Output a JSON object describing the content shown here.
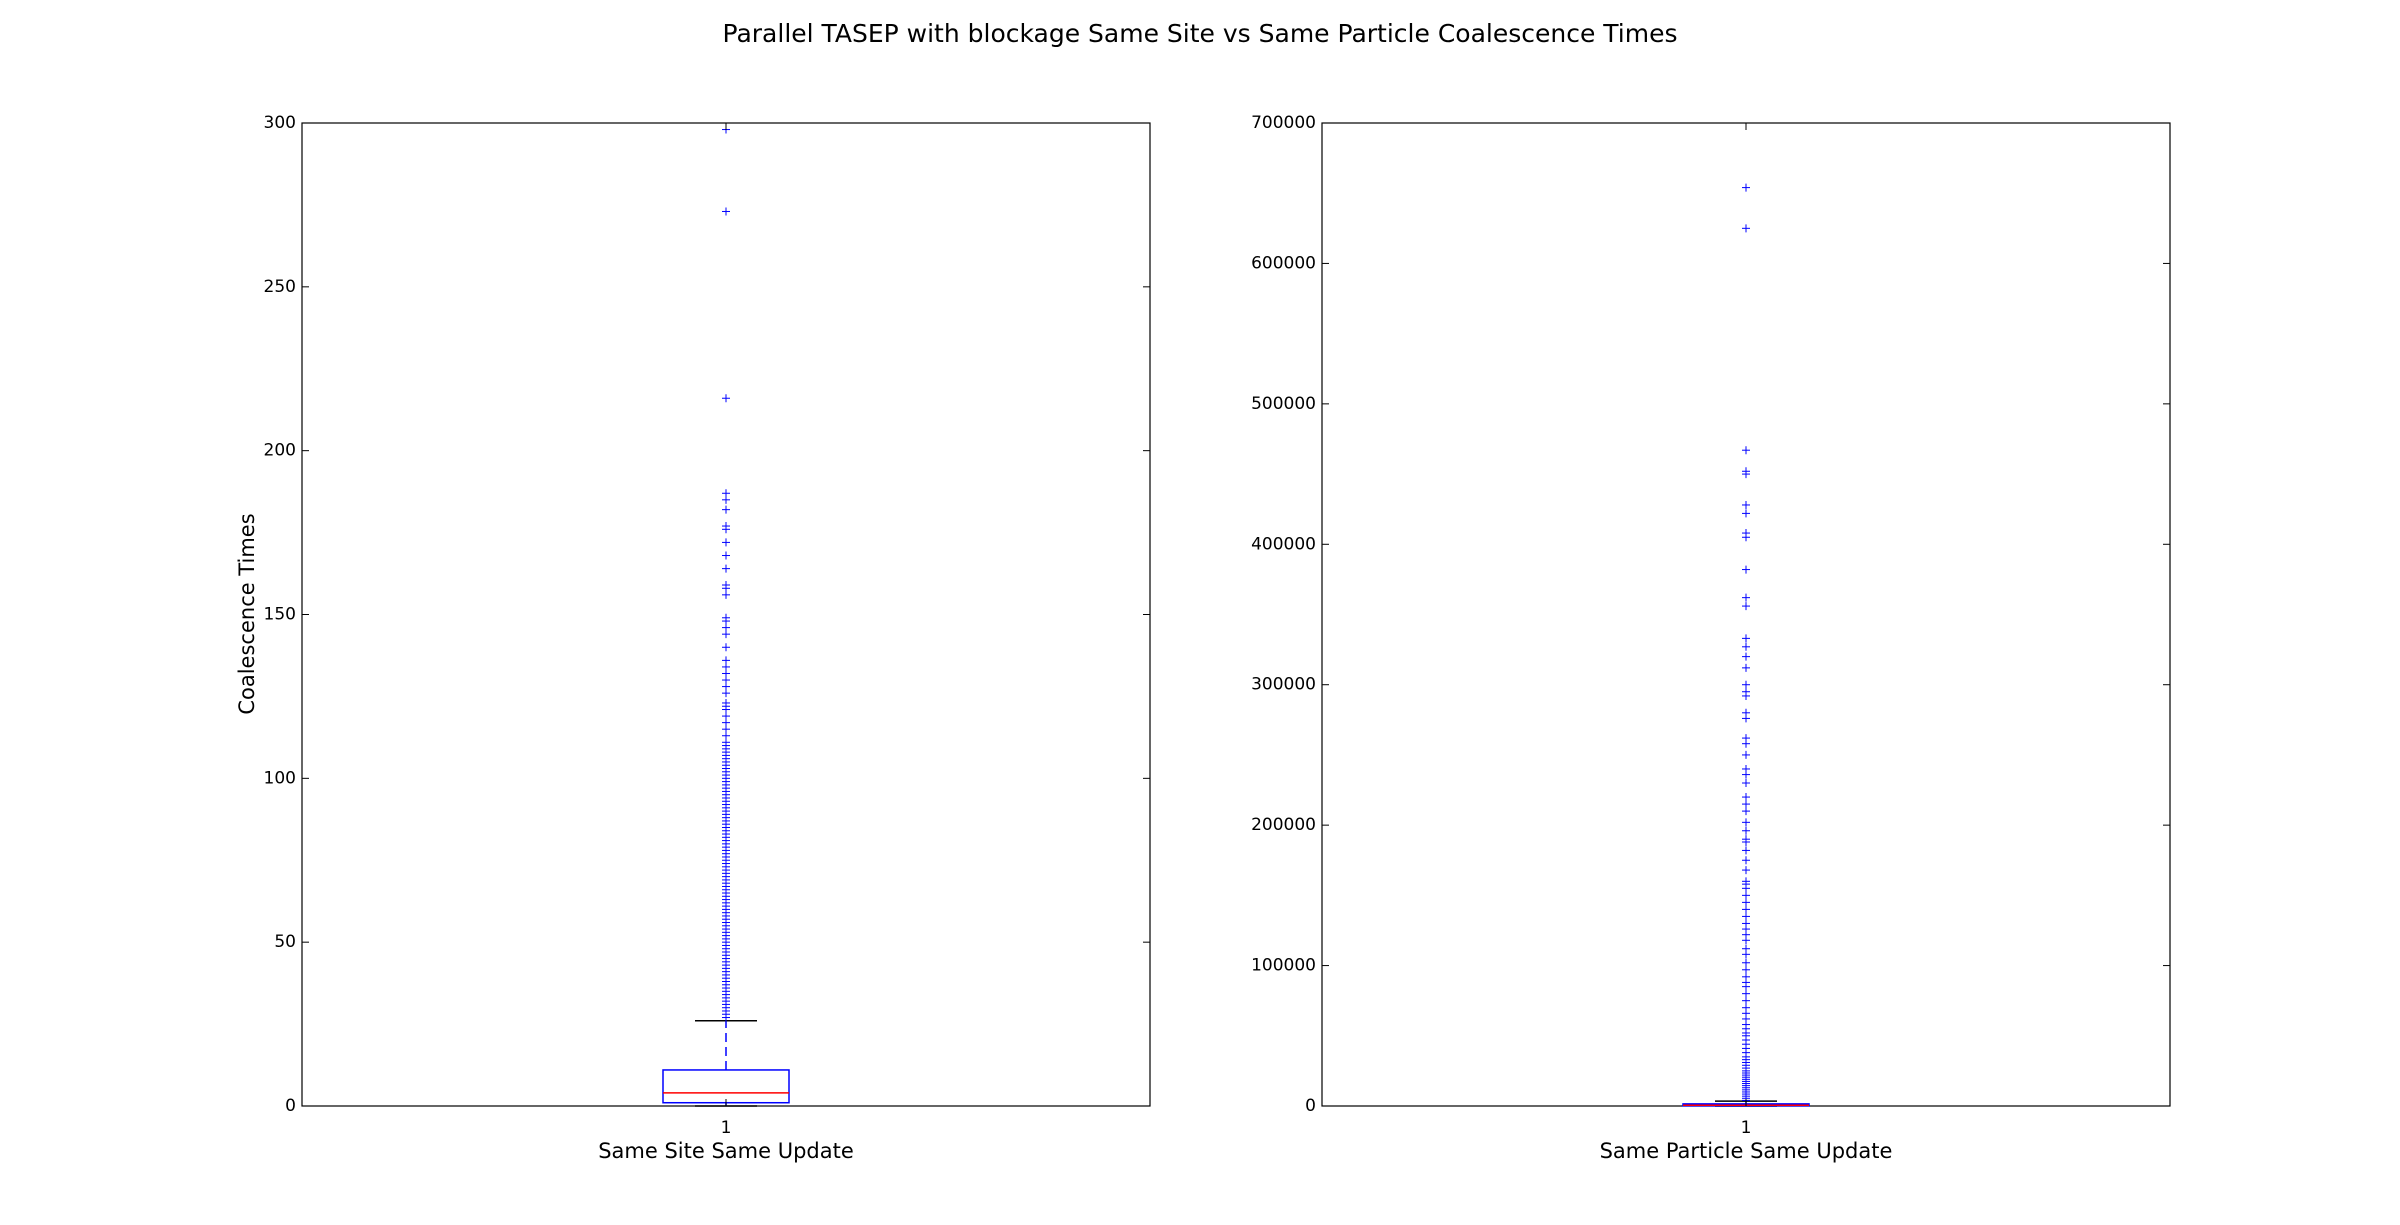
{
  "title": "Parallel TASEP with blockage Same Site vs Same Particle Coalescence Times",
  "chart_data": [
    {
      "type": "box",
      "ylabel": "Coalescence Times",
      "xlabel": "Same Site Same Update",
      "x_ticks": [
        "1"
      ],
      "ylim": [
        0,
        300
      ],
      "y_ticks": [
        0,
        50,
        100,
        150,
        200,
        250,
        300
      ],
      "grid": false,
      "box": {
        "q1": 1,
        "median": 4,
        "q3": 11,
        "whisker_low": 0,
        "whisker_high": 26
      },
      "outliers": [
        27,
        28,
        29,
        30,
        31,
        32,
        33,
        34,
        35,
        36,
        37,
        38,
        39,
        40,
        41,
        42,
        43,
        44,
        45,
        46,
        47,
        48,
        49,
        50,
        51,
        52,
        53,
        54,
        55,
        56,
        57,
        58,
        59,
        60,
        61,
        62,
        63,
        64,
        65,
        66,
        67,
        68,
        69,
        70,
        71,
        72,
        73,
        74,
        75,
        76,
        77,
        78,
        79,
        80,
        81,
        82,
        83,
        84,
        85,
        86,
        87,
        88,
        89,
        90,
        91,
        92,
        93,
        94,
        95,
        96,
        97,
        98,
        99,
        100,
        101,
        102,
        103,
        104,
        105,
        106,
        107,
        108,
        109,
        110,
        111,
        113,
        115,
        117,
        119,
        121,
        122,
        123,
        126,
        128,
        130,
        132,
        134,
        136,
        140,
        144,
        146,
        148,
        149,
        156,
        158,
        159,
        164,
        168,
        172,
        176,
        177,
        182,
        185,
        187,
        216,
        273,
        298
      ],
      "colors": {
        "box": "#0000ff",
        "median": "#ff0000",
        "whisker": "#0000ff",
        "cap": "#000000",
        "outlier": "#0000ff"
      }
    },
    {
      "type": "box",
      "ylabel": "",
      "xlabel": "Same Particle Same Update",
      "x_ticks": [
        "1"
      ],
      "ylim": [
        0,
        700000
      ],
      "y_ticks": [
        0,
        100000,
        200000,
        300000,
        400000,
        500000,
        600000,
        700000
      ],
      "grid": false,
      "box": {
        "q1": 100,
        "median": 500,
        "q3": 1500,
        "whisker_low": 0,
        "whisker_high": 3500
      },
      "outliers": [
        4000,
        5500,
        7000,
        8500,
        10000,
        11500,
        13000,
        14500,
        16000,
        17500,
        19000,
        20500,
        22000,
        23500,
        25000,
        27000,
        29000,
        31000,
        33000,
        35000,
        38000,
        41000,
        44000,
        47000,
        50000,
        52000,
        55000,
        58000,
        62000,
        66000,
        70000,
        75000,
        80000,
        85000,
        88000,
        92000,
        97000,
        102000,
        108000,
        112000,
        118000,
        122000,
        126000,
        130000,
        135000,
        140000,
        145000,
        150000,
        155000,
        158000,
        160000,
        168000,
        175000,
        182000,
        188000,
        190000,
        196000,
        202000,
        210000,
        215000,
        220000,
        230000,
        236000,
        240000,
        250000,
        258000,
        262000,
        276000,
        280000,
        292000,
        295000,
        300000,
        312000,
        320000,
        327000,
        333000,
        356000,
        362000,
        382000,
        405000,
        408000,
        422000,
        428000,
        450000,
        452000,
        467000,
        625000,
        654000
      ],
      "colors": {
        "box": "#0000ff",
        "median": "#ff0000",
        "whisker": "#0000ff",
        "cap": "#000000",
        "outlier": "#0000ff"
      }
    }
  ]
}
